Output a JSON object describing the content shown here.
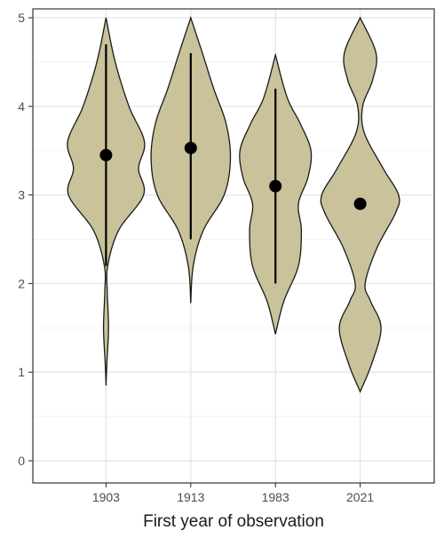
{
  "chart_data": {
    "type": "violin",
    "title": "",
    "xlabel": "First year of observation",
    "ylabel": "",
    "categories": [
      "1903",
      "1913",
      "1983",
      "2021"
    ],
    "ylim": [
      -0.25,
      5.1
    ],
    "yticks": [
      0,
      1,
      2,
      3,
      4,
      5
    ],
    "grid": true,
    "legend": "none",
    "colors": {
      "fill": "#c9c29a",
      "outline": "#1a1a1a",
      "panel_border": "#333333",
      "grid_major": "#e6e6e6",
      "grid_minor": "#f2f2f2"
    },
    "series": [
      {
        "category": "1903",
        "mean": 3.45,
        "interval": [
          2.2,
          4.7
        ],
        "range": [
          0.85,
          5.0
        ],
        "width_profile": [
          [
            0.85,
            0.0
          ],
          [
            1.1,
            0.02
          ],
          [
            1.5,
            0.06
          ],
          [
            1.9,
            0.03
          ],
          [
            2.2,
            0.04
          ],
          [
            2.6,
            0.3
          ],
          [
            3.0,
            0.9
          ],
          [
            3.3,
            0.78
          ],
          [
            3.6,
            0.92
          ],
          [
            4.0,
            0.55
          ],
          [
            4.5,
            0.22
          ],
          [
            5.0,
            0.0
          ]
        ]
      },
      {
        "category": "1913",
        "mean": 3.53,
        "interval": [
          2.5,
          4.6
        ],
        "range": [
          1.78,
          5.0
        ],
        "width_profile": [
          [
            1.78,
            0.0
          ],
          [
            2.2,
            0.06
          ],
          [
            2.6,
            0.3
          ],
          [
            3.0,
            0.8
          ],
          [
            3.4,
            0.95
          ],
          [
            3.8,
            0.85
          ],
          [
            4.2,
            0.55
          ],
          [
            4.6,
            0.28
          ],
          [
            5.0,
            0.0
          ]
        ]
      },
      {
        "category": "1983",
        "mean": 3.1,
        "interval": [
          2.0,
          4.2
        ],
        "range": [
          1.43,
          4.58
        ],
        "width_profile": [
          [
            1.43,
            0.0
          ],
          [
            1.8,
            0.2
          ],
          [
            2.2,
            0.55
          ],
          [
            2.6,
            0.62
          ],
          [
            2.9,
            0.55
          ],
          [
            3.2,
            0.78
          ],
          [
            3.5,
            0.85
          ],
          [
            3.8,
            0.6
          ],
          [
            4.1,
            0.28
          ],
          [
            4.58,
            0.0
          ]
        ]
      },
      {
        "category": "2021",
        "mean": 2.9,
        "interval": [],
        "range": [
          0.78,
          5.0
        ],
        "width_profile": [
          [
            0.78,
            0.0
          ],
          [
            1.1,
            0.28
          ],
          [
            1.5,
            0.5
          ],
          [
            1.8,
            0.25
          ],
          [
            2.0,
            0.12
          ],
          [
            2.4,
            0.4
          ],
          [
            2.8,
            0.85
          ],
          [
            3.0,
            0.92
          ],
          [
            3.3,
            0.55
          ],
          [
            3.7,
            0.1
          ],
          [
            4.0,
            0.06
          ],
          [
            4.3,
            0.3
          ],
          [
            4.6,
            0.38
          ],
          [
            5.0,
            0.0
          ]
        ]
      }
    ]
  }
}
